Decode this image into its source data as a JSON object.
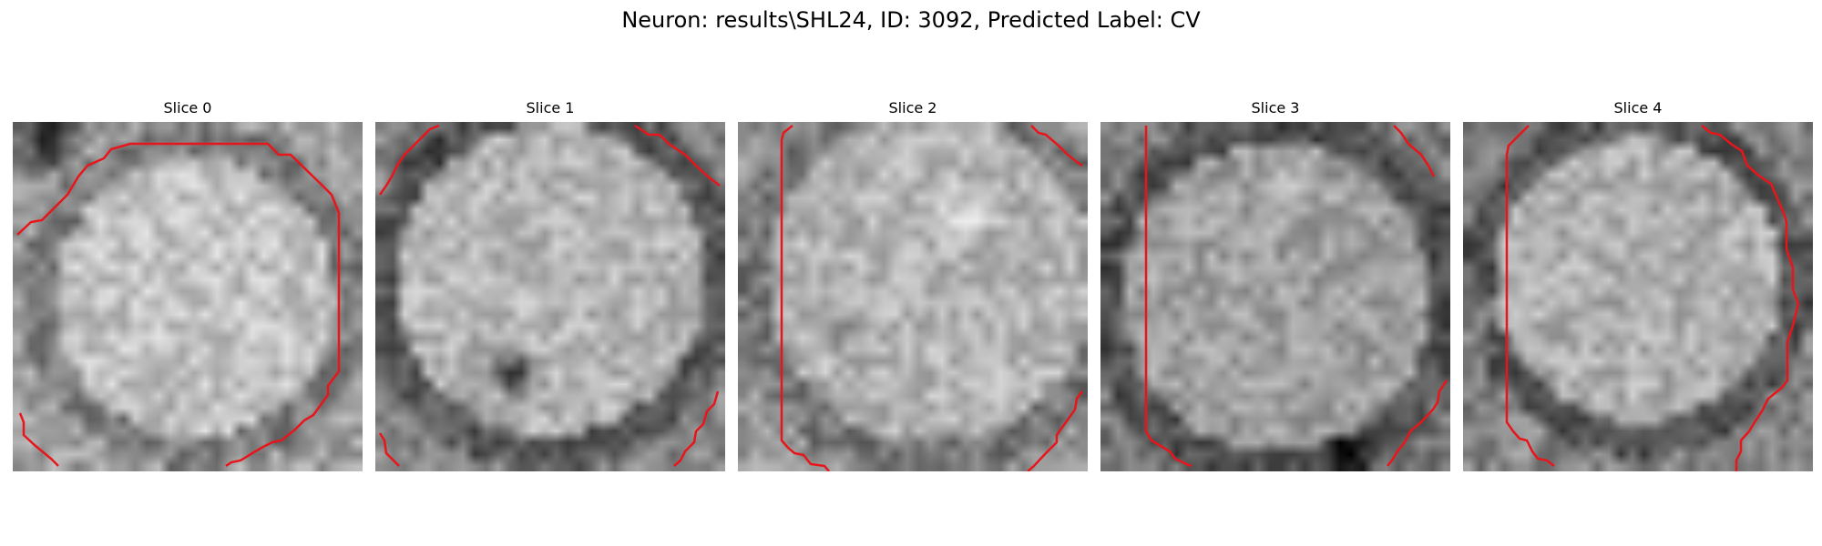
{
  "figure": {
    "title": "Neuron: results\\SHL24, ID: 3092, Predicted Label: CV"
  },
  "slices": [
    {
      "title": "Slice 0"
    },
    {
      "title": "Slice 1"
    },
    {
      "title": "Slice 2"
    },
    {
      "title": "Slice 3"
    },
    {
      "title": "Slice 4"
    }
  ],
  "colors": {
    "contour": "#e8151b",
    "background": "#ffffff"
  }
}
